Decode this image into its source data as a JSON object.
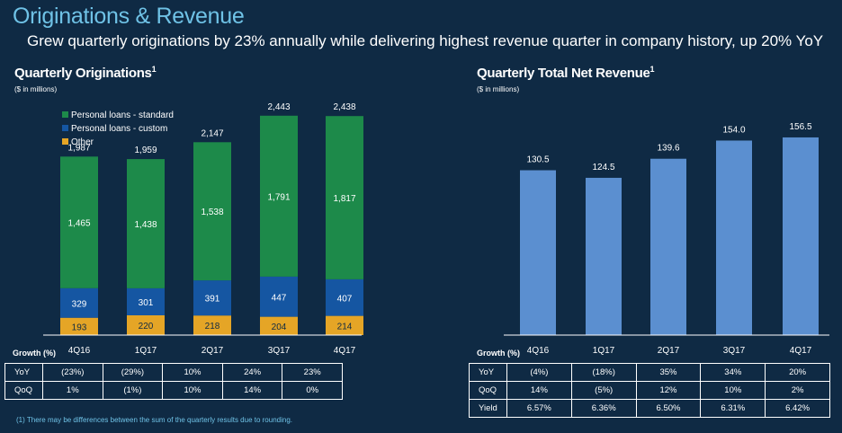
{
  "header": {
    "title": "Originations & Revenue",
    "subtitle": "Grew quarterly originations by 23% annually while delivering highest revenue quarter in company history, up 20% YoY"
  },
  "footnote": "(1) There may be differences between the sum of the quarterly results due to rounding.",
  "colors": {
    "standard": "#1d8a4a",
    "custom": "#1556a2",
    "other": "#e5a526",
    "revenue": "#5b8fd0"
  },
  "chart_data": [
    {
      "type": "bar",
      "stacked": true,
      "title": "Quarterly Originations",
      "title_sup": "1",
      "units": "($ in millions)",
      "categories": [
        "4Q16",
        "1Q17",
        "2Q17",
        "3Q17",
        "4Q17"
      ],
      "series": [
        {
          "name": "Other",
          "values": [
            193,
            220,
            218,
            204,
            214
          ],
          "color": "#e5a526"
        },
        {
          "name": "Personal loans - custom",
          "values": [
            329,
            301,
            391,
            447,
            407
          ],
          "color": "#1556a2"
        },
        {
          "name": "Personal loans - standard",
          "values": [
            1465,
            1438,
            1538,
            1791,
            1817
          ],
          "color": "#1d8a4a"
        }
      ],
      "segment_labels": {
        "Other": [
          "193",
          "220",
          "218",
          "204",
          "214"
        ],
        "Personal loans - custom": [
          "329",
          "301",
          "391",
          "447",
          "407"
        ],
        "Personal loans - standard": [
          "1,465",
          "1,438",
          "1,538",
          "1,791",
          "1,817"
        ]
      },
      "totals": [
        1987,
        1959,
        2147,
        2443,
        2438
      ],
      "total_labels": [
        "1,987",
        "1,959",
        "2,147",
        "2,443",
        "2,438"
      ],
      "legend": [
        "Personal loans - standard",
        "Personal loans - custom",
        "Other"
      ],
      "legend_position": "top-left",
      "ylim": [
        0,
        2600
      ],
      "grid": false
    },
    {
      "type": "bar",
      "title": "Quarterly Total Net Revenue",
      "title_sup": "1",
      "units": "($ in millions)",
      "categories": [
        "4Q16",
        "1Q17",
        "2Q17",
        "3Q17",
        "4Q17"
      ],
      "values": [
        130.5,
        124.5,
        139.6,
        154.0,
        156.5
      ],
      "value_labels": [
        "130.5",
        "124.5",
        "139.6",
        "154.0",
        "156.5"
      ],
      "color": "#5b8fd0",
      "ylim": [
        0,
        165
      ],
      "grid": false
    }
  ],
  "growth_left": {
    "label": "Growth (%)",
    "rows": [
      {
        "name": "YoY",
        "values": [
          "(23%)",
          "(29%)",
          "10%",
          "24%",
          "23%"
        ]
      },
      {
        "name": "QoQ",
        "values": [
          "1%",
          "(1%)",
          "10%",
          "14%",
          "0%"
        ]
      }
    ]
  },
  "growth_right": {
    "label": "Growth (%)",
    "rows": [
      {
        "name": "YoY",
        "values": [
          "(4%)",
          "(18%)",
          "35%",
          "34%",
          "20%"
        ]
      },
      {
        "name": "QoQ",
        "values": [
          "14%",
          "(5%)",
          "12%",
          "10%",
          "2%"
        ]
      },
      {
        "name": "Yield",
        "values": [
          "6.57%",
          "6.36%",
          "6.50%",
          "6.31%",
          "6.42%"
        ]
      }
    ]
  }
}
